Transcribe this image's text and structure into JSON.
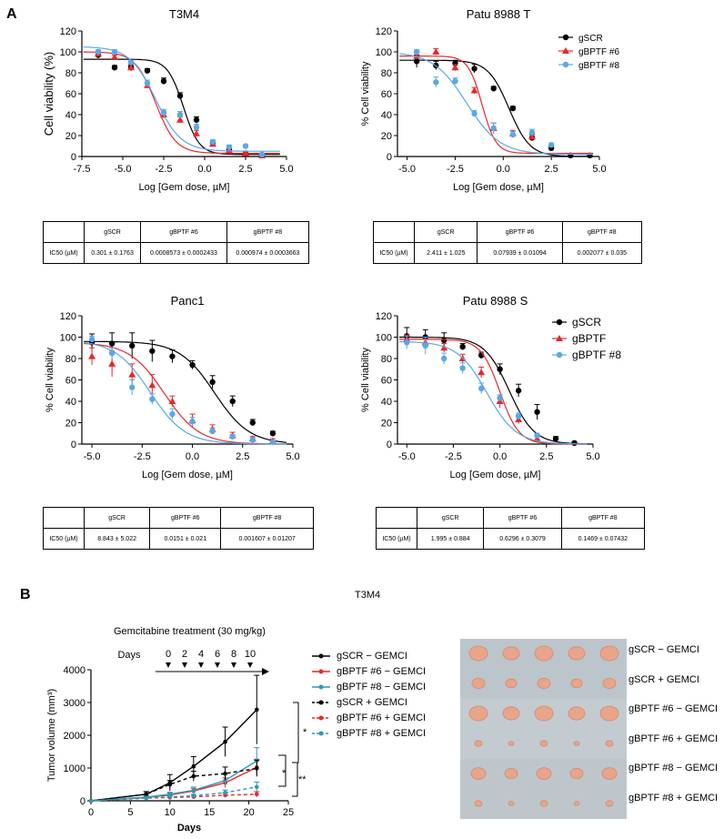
{
  "panel_labels": {
    "a": "A",
    "b": "B"
  },
  "colors": {
    "gscr": "#000000",
    "bptf6": "#e8272b",
    "bptf8": "#5ba7e6",
    "b_bptf8": "#2a9bb5"
  },
  "tables": [
    {
      "headers": [
        "",
        "gSCR",
        "gBPTF #6",
        "gBPTF #8"
      ],
      "row": [
        "IC50 (µM)",
        "0.301 ± 0.1763",
        "0.0008573 ± 0.0002433",
        "0.000974 ± 0.0003663"
      ]
    },
    {
      "headers": [
        "",
        "gSCR",
        "gBPTF #6",
        "gBPTF #8"
      ],
      "row": [
        "IC50 (µM)",
        "2.411 ± 1.025",
        "0.07939 ± 0.01094",
        "0.002077 ± 0.035"
      ]
    },
    {
      "headers": [
        "",
        "gSCR",
        "gBPTF #6",
        "gBPTF #8"
      ],
      "row": [
        "IC50 (µM)",
        "8.843 ± 5.022",
        "0.0151 ± 0.021",
        "0.001607 ± 0.01207"
      ]
    },
    {
      "headers": [
        "",
        "gSCR",
        "gBPTF #6",
        "gBPTF #8"
      ],
      "row": [
        "IC50 (µM)",
        "1.995 ± 0.884",
        "0.6296 ± 0.3079",
        "0.1469 ± 0.07432"
      ]
    }
  ],
  "panel_b": {
    "title": "T3M4",
    "subtitle": "Gemcitabine treatment (30 mg/kg)",
    "days_label": "Days",
    "treatment_days": [
      "0",
      "2",
      "4",
      "6",
      "8",
      "10"
    ],
    "significance": [
      "*",
      "*",
      "**"
    ],
    "photo_labels": [
      "gSCR − GEMCI",
      "gSCR + GEMCI",
      "gBPTF #6 − GEMCI",
      "gBPTF #6 + GEMCI",
      "gBPTF #8 − GEMCI",
      "gBPTF #8 + GEMCI"
    ]
  },
  "chart_data": [
    {
      "type": "scatter",
      "title": "T3M4",
      "xlabel": "Log [Gem dose, µM]",
      "ylabel": "Cell viability (%)",
      "xlim": [
        -7.5,
        5.0
      ],
      "ylim": [
        0,
        120
      ],
      "xticks": [
        "-7.5",
        "-5.0",
        "-2.5",
        "0.0",
        "2.5",
        "5.0"
      ],
      "yticks": [
        "0",
        "20",
        "40",
        "60",
        "80",
        "100",
        "120"
      ],
      "legend": [],
      "series": [
        {
          "key": "gscr",
          "marker": "circle",
          "x": [
            -8,
            -6.5,
            -5.5,
            -4.5,
            -3.5,
            -2.5,
            -1.5,
            -0.5,
            0.5,
            1.5,
            2.5,
            3.5
          ],
          "y": [
            100,
            97,
            85,
            85,
            82,
            72,
            58,
            35,
            13,
            7,
            3,
            1
          ],
          "err": [
            0,
            3,
            2,
            2,
            2,
            3,
            3,
            3,
            2,
            2,
            1,
            1
          ],
          "curve": {
            "top": 93,
            "bottom": 2,
            "logec50": -1.3,
            "hill": 0.9
          }
        },
        {
          "key": "bptf6",
          "marker": "triangle",
          "x": [
            -6.5,
            -5.5,
            -4.5,
            -3.5,
            -2.5,
            -1.5,
            -0.5,
            0.5,
            1.5,
            2.5,
            3.5
          ],
          "y": [
            98,
            95,
            85,
            68,
            40,
            35,
            22,
            12,
            6,
            3,
            1
          ],
          "err": [
            2,
            2,
            3,
            3,
            3,
            3,
            3,
            2,
            2,
            1,
            1
          ],
          "curve": {
            "top": 100,
            "bottom": 3,
            "logec50": -3.0,
            "hill": 0.7
          }
        },
        {
          "key": "bptf8",
          "marker": "circle",
          "x": [
            -6.5,
            -5.5,
            -4.5,
            -3.5,
            -2.5,
            -1.5,
            -0.5,
            0.5,
            1.5,
            2.5,
            3.5
          ],
          "y": [
            100,
            100,
            90,
            70,
            42,
            40,
            28,
            14,
            9,
            10,
            2
          ],
          "err": [
            2,
            2,
            2,
            3,
            3,
            3,
            3,
            2,
            2,
            1,
            1
          ],
          "curve": {
            "top": 105,
            "bottom": 5,
            "logec50": -3.0,
            "hill": 0.55
          }
        }
      ]
    },
    {
      "type": "scatter",
      "title": "Patu 8988 T",
      "xlabel": "Log [Gem dose, µM]",
      "ylabel": "% Cell viability",
      "xlim": [
        -5.5,
        5.0
      ],
      "ylim": [
        0,
        120
      ],
      "xticks": [
        "-5.0",
        "-2.5",
        "0.0",
        "2.5",
        "5.0"
      ],
      "yticks": [
        "0",
        "20",
        "40",
        "60",
        "80",
        "100",
        "120"
      ],
      "legend": [
        "gSCR",
        "gBPTF #6",
        "gBPTF #8"
      ],
      "series": [
        {
          "key": "gscr",
          "marker": "circle",
          "x": [
            -4.5,
            -3.5,
            -2.5,
            -1.5,
            -0.5,
            0.5,
            1.5,
            2.5,
            3.5,
            4.5
          ],
          "y": [
            91,
            87,
            89,
            84,
            65,
            46,
            18,
            8,
            1,
            1
          ],
          "err": [
            6,
            4,
            3,
            4,
            2,
            2,
            3,
            2,
            1,
            1
          ],
          "curve": {
            "top": 92,
            "bottom": 0,
            "logec50": 0.3,
            "hill": 0.8
          }
        },
        {
          "key": "bptf6",
          "marker": "triangle",
          "x": [
            -4.5,
            -3.5,
            -2.5,
            -1.5,
            -0.5,
            0.5,
            1.5
          ],
          "y": [
            96,
            100,
            85,
            63,
            27,
            22,
            19
          ],
          "err": [
            3,
            3,
            3,
            3,
            5,
            3,
            3
          ],
          "curve": {
            "top": 96,
            "bottom": 3,
            "logec50": -1.1,
            "hill": 1.2
          }
        },
        {
          "key": "bptf8",
          "marker": "circle",
          "x": [
            -4.5,
            -3.5,
            -2.5,
            -1.5,
            -0.5,
            0.5,
            1.5,
            2.5
          ],
          "y": [
            100,
            71,
            72,
            41,
            27,
            21,
            23,
            11
          ],
          "err": [
            2,
            5,
            3,
            3,
            5,
            3,
            3,
            2
          ],
          "curve": {
            "top": 100,
            "bottom": 2,
            "logec50": -1.9,
            "hill": 0.5
          }
        }
      ]
    },
    {
      "type": "scatter",
      "title": "Panc1",
      "xlabel": "Log [Gem dose, µM]",
      "ylabel": "% Cell viability",
      "xlim": [
        -5.5,
        5.0
      ],
      "ylim": [
        0,
        120
      ],
      "xticks": [
        "-5.0",
        "-2.5",
        "0.0",
        "2.5",
        "5.0"
      ],
      "yticks": [
        "0",
        "20",
        "40",
        "60",
        "80",
        "100",
        "120"
      ],
      "legend": [],
      "series": [
        {
          "key": "gscr",
          "marker": "circle",
          "x": [
            -5,
            -4,
            -3,
            -2,
            -1,
            0,
            1,
            2,
            3,
            4
          ],
          "y": [
            95,
            94,
            92,
            87,
            82,
            74,
            58,
            40,
            20,
            10
          ],
          "err": [
            8,
            10,
            12,
            10,
            6,
            4,
            6,
            5,
            3,
            2
          ],
          "curve": {
            "top": 96,
            "bottom": 0,
            "logec50": 1.1,
            "hill": 0.5
          }
        },
        {
          "key": "bptf6",
          "marker": "triangle",
          "x": [
            -5,
            -4,
            -3,
            -2,
            -1,
            0,
            1,
            2,
            3,
            4
          ],
          "y": [
            82,
            75,
            65,
            55,
            40,
            22,
            14,
            8,
            5,
            3
          ],
          "err": [
            8,
            12,
            10,
            10,
            5,
            6,
            4,
            3,
            2,
            2
          ],
          "curve": {
            "top": 95,
            "bottom": 0,
            "logec50": -1.4,
            "hill": 0.5
          }
        },
        {
          "key": "bptf8",
          "marker": "circle",
          "x": [
            -5,
            -4,
            -3,
            -2,
            -1,
            0,
            1,
            2,
            3,
            4
          ],
          "y": [
            98,
            85,
            53,
            42,
            28,
            21,
            12,
            7,
            4,
            2
          ],
          "err": [
            3,
            5,
            7,
            5,
            5,
            4,
            3,
            2,
            2,
            1
          ],
          "curve": {
            "top": 97,
            "bottom": 0,
            "logec50": -2.1,
            "hill": 0.5
          }
        }
      ]
    },
    {
      "type": "scatter",
      "title": "Patu 8988 S",
      "xlabel": "Log [Gem dose, µM]",
      "ylabel": "% Cell viability",
      "xlim": [
        -5.5,
        5.0
      ],
      "ylim": [
        0,
        120
      ],
      "xticks": [
        "-5.0",
        "-2.5",
        "0.0",
        "2.5",
        "5.0"
      ],
      "yticks": [
        "0",
        "20",
        "40",
        "60",
        "80",
        "100",
        "120"
      ],
      "legend": [
        "gSCR",
        "gBPTF",
        "gBPTF #8"
      ],
      "series": [
        {
          "key": "gscr",
          "marker": "circle",
          "x": [
            -5,
            -4,
            -3,
            -2,
            -1,
            0,
            1,
            2,
            3,
            4
          ],
          "y": [
            101,
            100,
            97,
            91,
            83,
            70,
            50,
            30,
            5,
            1
          ],
          "err": [
            8,
            7,
            7,
            3,
            3,
            5,
            6,
            7,
            2,
            1
          ],
          "curve": {
            "top": 100,
            "bottom": 0,
            "logec50": 0.5,
            "hill": 0.65
          }
        },
        {
          "key": "bptf6",
          "marker": "triangle",
          "x": [
            -5,
            -4,
            -3,
            -2,
            -1,
            0,
            1,
            2
          ],
          "y": [
            98,
            95,
            90,
            80,
            67,
            40,
            23,
            5
          ],
          "err": [
            4,
            5,
            4,
            4,
            5,
            6,
            4,
            2
          ],
          "curve": {
            "top": 98,
            "bottom": 0,
            "logec50": 0.0,
            "hill": 0.85
          }
        },
        {
          "key": "bptf8",
          "marker": "circle",
          "x": [
            -5,
            -4,
            -3,
            -2,
            -1,
            0,
            1,
            2
          ],
          "y": [
            95,
            92,
            80,
            71,
            52,
            43,
            26,
            8
          ],
          "err": [
            6,
            8,
            5,
            5,
            5,
            3,
            3,
            2
          ],
          "curve": {
            "top": 96,
            "bottom": 0,
            "logec50": -0.7,
            "hill": 0.55
          }
        }
      ]
    },
    {
      "type": "line",
      "title": "",
      "xlabel": "Days",
      "ylabel": "Tumor volume (mm³)",
      "xlim": [
        0,
        25
      ],
      "ylim": [
        0,
        4000
      ],
      "xticks": [
        "0",
        "5",
        "10",
        "15",
        "20",
        "25"
      ],
      "yticks": [
        "0",
        "1000",
        "2000",
        "3000",
        "4000"
      ],
      "series": [
        {
          "name": "gSCR − GEMCI",
          "key": "gscr",
          "dash": false,
          "x": [
            0,
            7,
            10,
            13,
            17,
            21
          ],
          "y": [
            0,
            200,
            550,
            1050,
            1800,
            2780
          ],
          "err": [
            0,
            80,
            250,
            300,
            450,
            1050
          ]
        },
        {
          "name": "gBPTF #6 − GEMCI",
          "key": "bptf6",
          "dash": false,
          "x": [
            0,
            7,
            10,
            13,
            17,
            21
          ],
          "y": [
            0,
            100,
            180,
            300,
            550,
            1020
          ],
          "err": [
            0,
            40,
            60,
            80,
            150,
            250
          ]
        },
        {
          "name": "gBPTF #8 − GEMCI",
          "key": "b_bptf8",
          "dash": false,
          "x": [
            0,
            7,
            10,
            13,
            17,
            21
          ],
          "y": [
            0,
            110,
            200,
            320,
            620,
            1220
          ],
          "err": [
            0,
            50,
            60,
            100,
            180,
            400
          ]
        },
        {
          "name": "gSCR + GEMCI",
          "key": "gscr",
          "dash": true,
          "x": [
            0,
            7,
            10,
            13,
            17,
            21
          ],
          "y": [
            0,
            200,
            500,
            750,
            830,
            990
          ],
          "err": [
            0,
            80,
            120,
            150,
            200,
            250
          ]
        },
        {
          "name": "gBPTF #6 + GEMCI",
          "key": "bptf6",
          "dash": true,
          "x": [
            0,
            7,
            10,
            13,
            17,
            21
          ],
          "y": [
            0,
            80,
            100,
            120,
            170,
            200
          ],
          "err": [
            0,
            30,
            40,
            40,
            60,
            80
          ]
        },
        {
          "name": "gBPTF #8 + GEMCI",
          "key": "b_bptf8",
          "dash": true,
          "x": [
            0,
            7,
            10,
            13,
            17,
            21
          ],
          "y": [
            0,
            90,
            120,
            150,
            250,
            420
          ],
          "err": [
            0,
            30,
            40,
            50,
            80,
            150
          ]
        }
      ]
    }
  ]
}
